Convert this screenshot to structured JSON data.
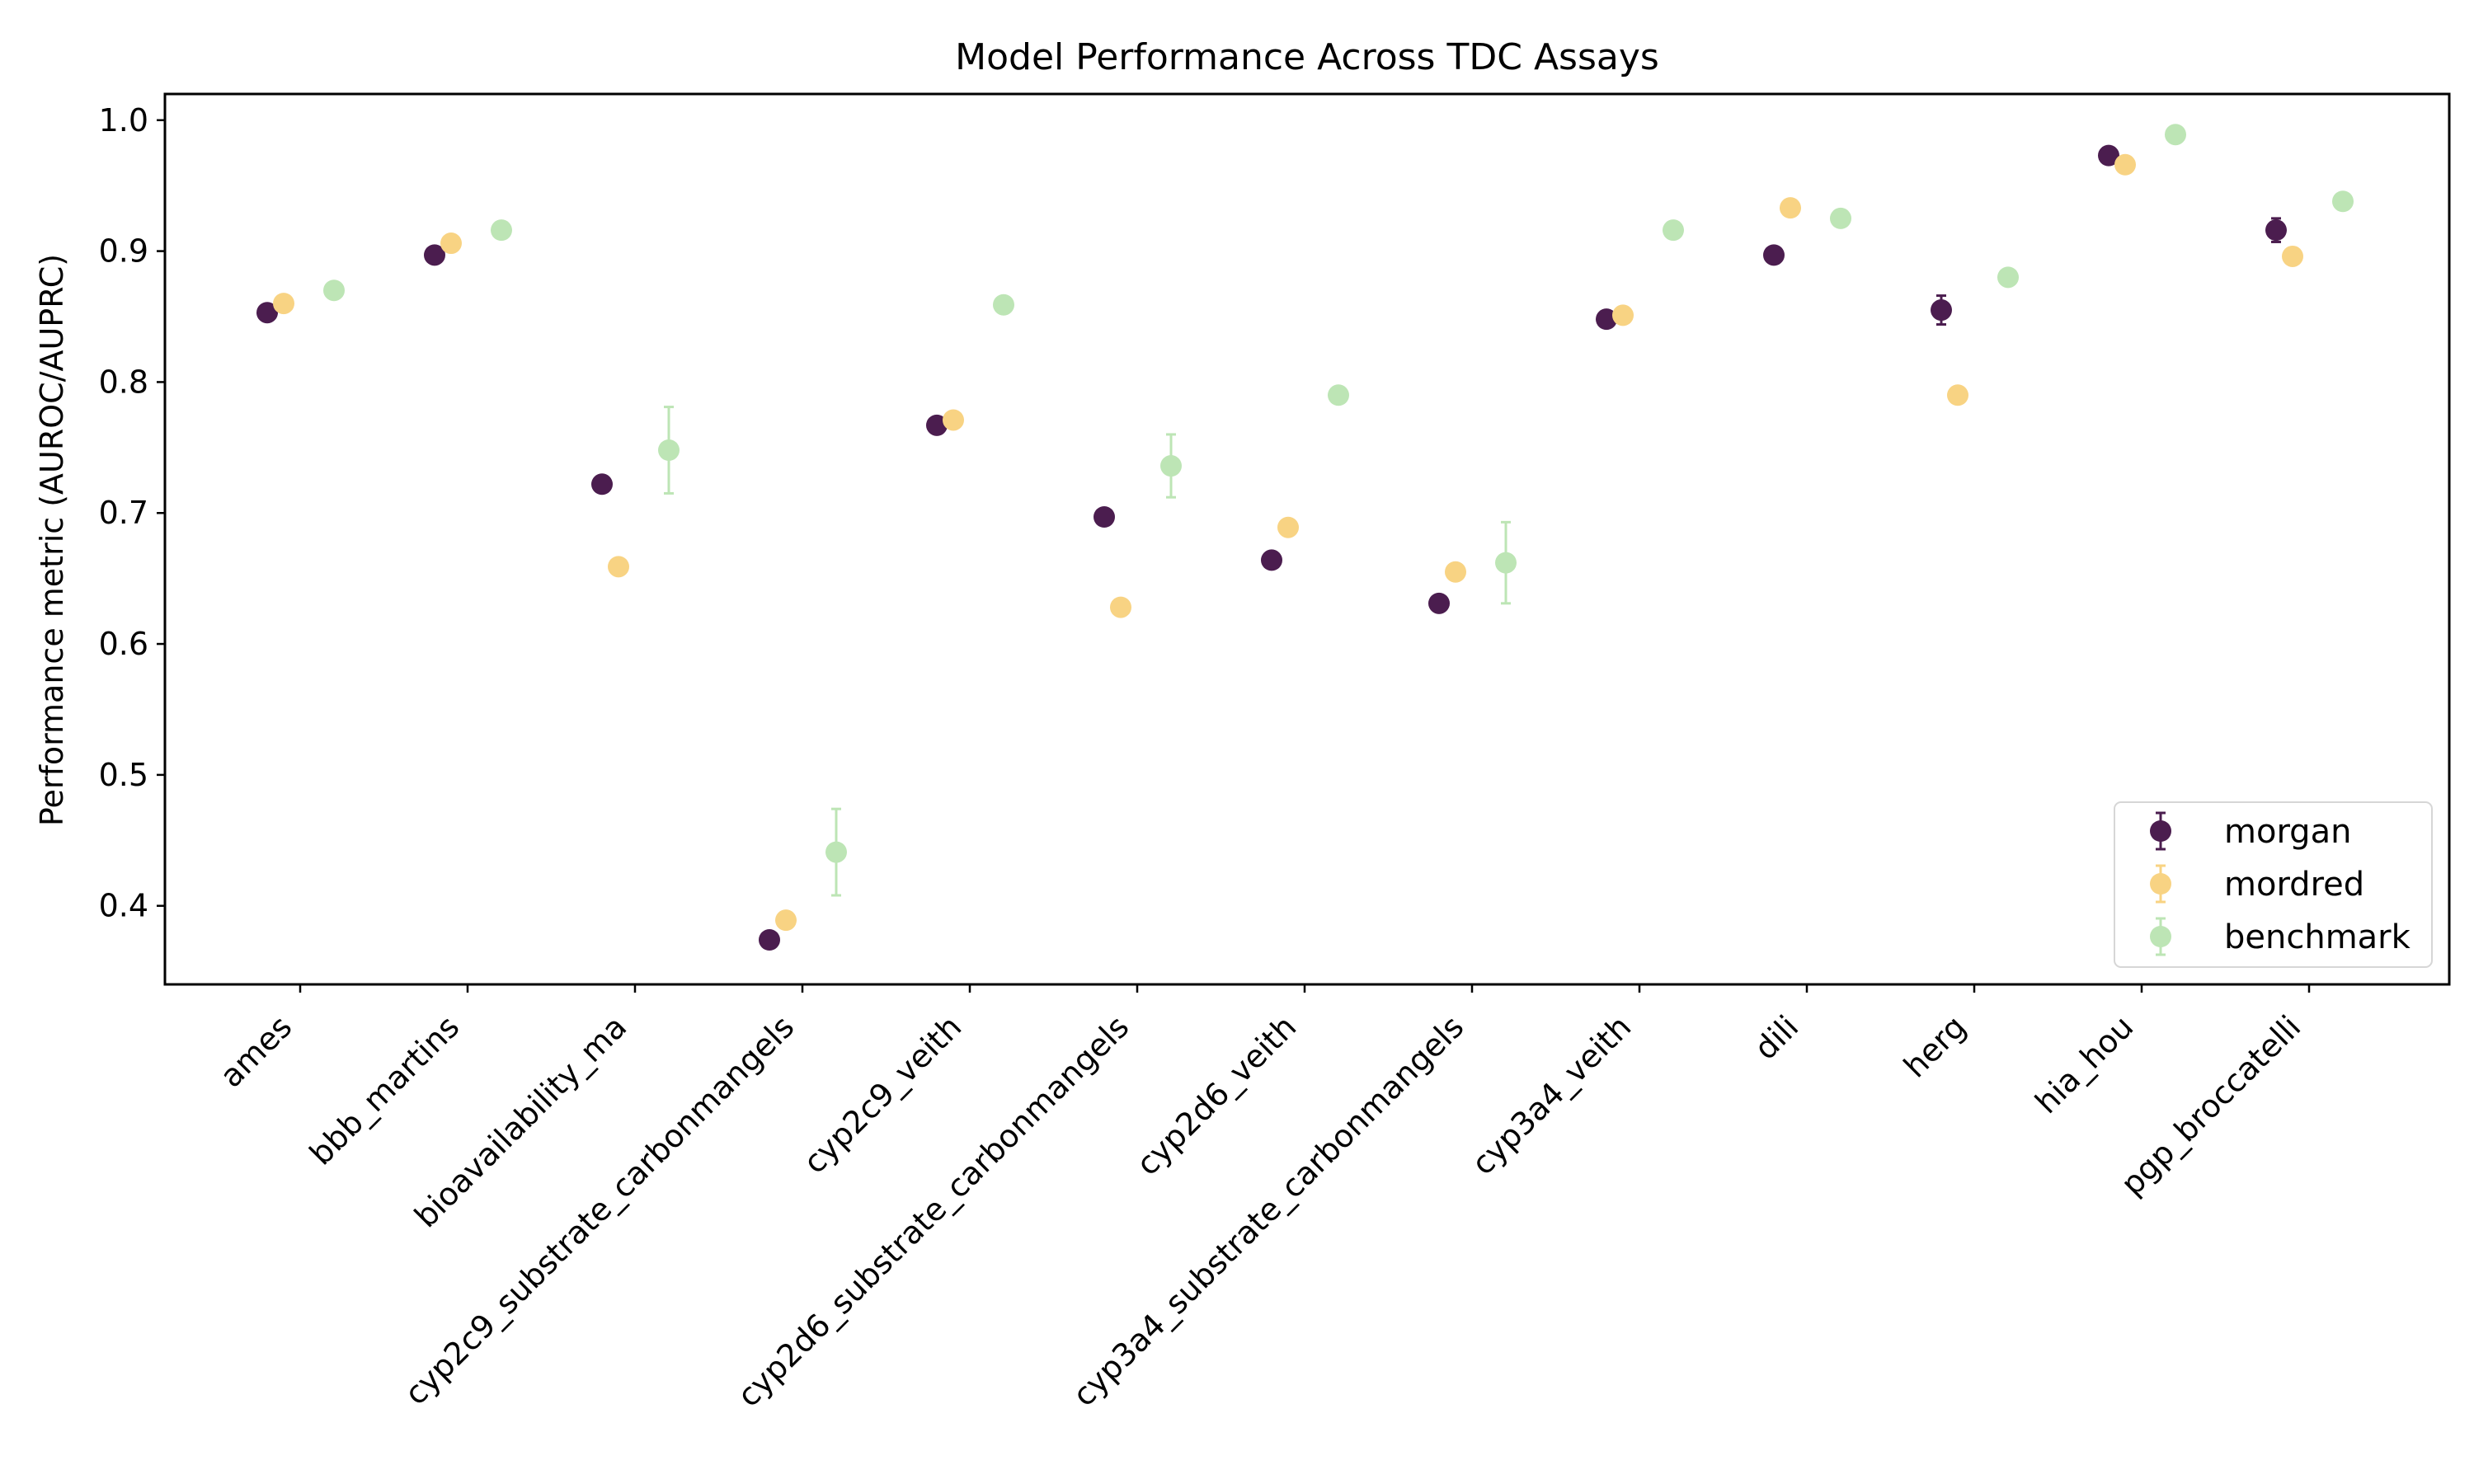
{
  "chart_data": {
    "type": "scatter",
    "title": "Model Performance Across TDC Assays",
    "xlabel": "",
    "ylabel": "Performance metric (AUROC/AUPRC)",
    "ylim": [
      0.34,
      1.02
    ],
    "yticks": [
      "0.4",
      "0.5",
      "0.6",
      "0.7",
      "0.8",
      "0.9",
      "1.0"
    ],
    "grid": false,
    "legend_position": "lower-right",
    "categories": [
      "ames",
      "bbb_martins",
      "bioavailability_ma",
      "cyp2c9_substrate_carbonmangels",
      "cyp2c9_veith",
      "cyp2d6_substrate_carbonmangels",
      "cyp2d6_veith",
      "cyp3a4_substrate_carbonmangels",
      "cyp3a4_veith",
      "dili",
      "herg",
      "hia_hou",
      "pgp_broccatelli"
    ],
    "series": [
      {
        "name": "morgan",
        "color": "#4b1d4f",
        "values": [
          0.853,
          0.897,
          0.722,
          0.374,
          0.767,
          0.697,
          0.664,
          0.631,
          0.848,
          0.897,
          0.855,
          0.973,
          0.916
        ],
        "errors": [
          0.003,
          0.003,
          0.004,
          0.004,
          0.003,
          0.003,
          0.003,
          0.003,
          0.003,
          0.003,
          0.011,
          0.003,
          0.009
        ]
      },
      {
        "name": "mordred",
        "color": "#f8d383",
        "values": [
          0.86,
          0.906,
          0.659,
          0.389,
          0.771,
          0.628,
          0.689,
          0.655,
          0.851,
          0.933,
          0.79,
          0.966,
          0.896
        ],
        "errors": [
          0.002,
          0.002,
          0.003,
          0.003,
          0.002,
          0.003,
          0.003,
          0.003,
          0.002,
          0.003,
          0.003,
          0.002,
          0.003
        ]
      },
      {
        "name": "benchmark",
        "color": "#bde5b5",
        "values": [
          0.87,
          0.916,
          0.748,
          0.441,
          0.859,
          0.736,
          0.79,
          0.662,
          0.916,
          0.925,
          0.88,
          0.989,
          0.938
        ],
        "errors": [
          0.002,
          0.002,
          0.033,
          0.033,
          0.002,
          0.024,
          0.002,
          0.031,
          0.002,
          0.002,
          0.002,
          0.002,
          0.002
        ]
      }
    ]
  }
}
